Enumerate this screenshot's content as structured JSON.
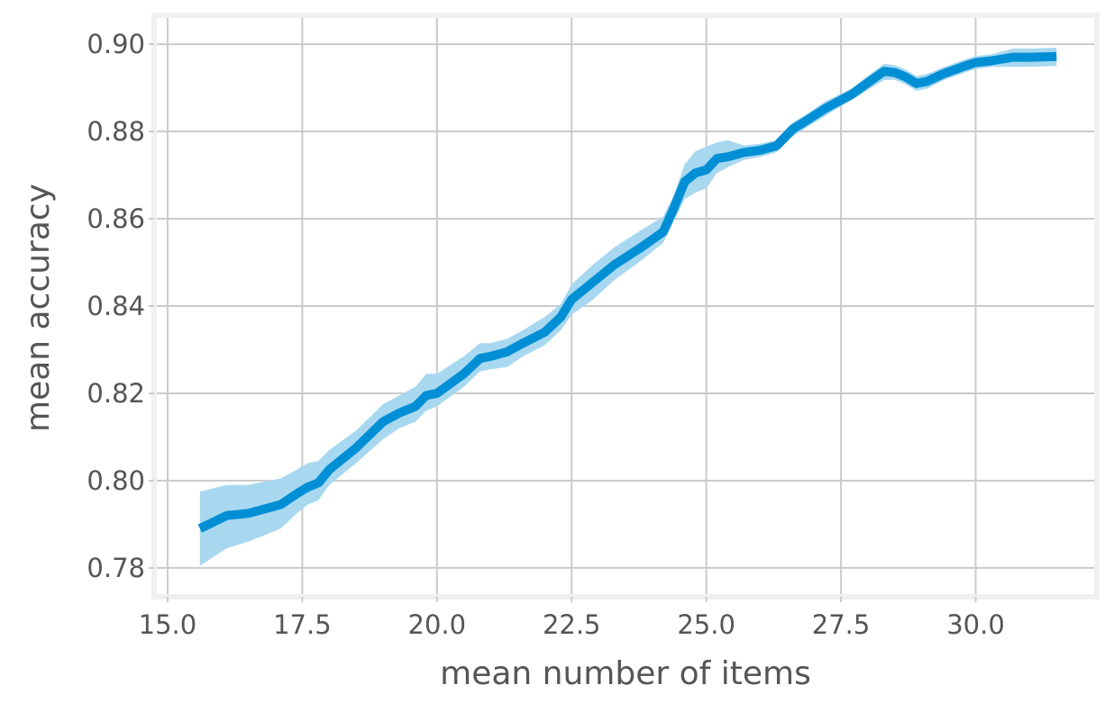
{
  "chart_data": {
    "type": "line",
    "title": "",
    "xlabel": "mean number of items",
    "ylabel": "mean accuracy",
    "xlim": [
      14.8,
      32.2
    ],
    "ylim": [
      0.774,
      0.906
    ],
    "x_ticks": [
      15.0,
      17.5,
      20.0,
      22.5,
      25.0,
      27.5,
      30.0
    ],
    "x_tick_labels": [
      "15.0",
      "17.5",
      "20.0",
      "22.5",
      "25.0",
      "27.5",
      "30.0"
    ],
    "y_ticks": [
      0.78,
      0.8,
      0.82,
      0.84,
      0.86,
      0.88,
      0.9
    ],
    "y_tick_labels": [
      "0.78",
      "0.80",
      "0.82",
      "0.84",
      "0.86",
      "0.88",
      "0.90"
    ],
    "grid": true,
    "legend": "none",
    "colors": {
      "line": "#008fd5",
      "band": "#a8d8f0",
      "grid": "#cbcbcb",
      "frame": "#f0f0f0",
      "text": "#555555"
    },
    "series": [
      {
        "x": [
          15.6,
          16.1,
          16.5,
          17.1,
          17.4,
          17.6,
          17.8,
          18.0,
          18.5,
          19.0,
          19.3,
          19.6,
          19.8,
          20.0,
          20.5,
          20.8,
          21.0,
          21.3,
          21.6,
          22.0,
          22.3,
          22.5,
          22.9,
          23.3,
          23.8,
          24.2,
          24.4,
          24.6,
          24.8,
          25.0,
          25.2,
          25.4,
          25.7,
          26.0,
          26.3,
          26.6,
          26.9,
          27.2,
          27.5,
          27.7,
          28.0,
          28.3,
          28.5,
          28.7,
          28.9,
          29.1,
          29.4,
          29.8,
          30.0,
          30.3,
          30.7,
          31.0,
          31.5
        ],
        "y": [
          0.789,
          0.792,
          0.7925,
          0.7945,
          0.797,
          0.7985,
          0.7995,
          0.8025,
          0.8075,
          0.8135,
          0.8155,
          0.817,
          0.8195,
          0.82,
          0.8245,
          0.828,
          0.8285,
          0.8295,
          0.8315,
          0.834,
          0.8375,
          0.8415,
          0.8455,
          0.8495,
          0.8535,
          0.857,
          0.8625,
          0.8685,
          0.8705,
          0.8712,
          0.8738,
          0.8742,
          0.8752,
          0.8757,
          0.8767,
          0.8805,
          0.8828,
          0.8852,
          0.8872,
          0.8885,
          0.8912,
          0.8938,
          0.8935,
          0.8925,
          0.891,
          0.8915,
          0.8932,
          0.895,
          0.8958,
          0.8962,
          0.897,
          0.897,
          0.8972
        ],
        "lower": [
          0.7805,
          0.7845,
          0.786,
          0.789,
          0.7925,
          0.7945,
          0.7955,
          0.799,
          0.804,
          0.8095,
          0.812,
          0.8135,
          0.816,
          0.817,
          0.8215,
          0.825,
          0.8255,
          0.826,
          0.8285,
          0.831,
          0.8345,
          0.838,
          0.8415,
          0.846,
          0.8505,
          0.8545,
          0.8595,
          0.8645,
          0.866,
          0.867,
          0.8705,
          0.8718,
          0.8735,
          0.8742,
          0.8752,
          0.8788,
          0.8812,
          0.8835,
          0.8858,
          0.8872,
          0.8895,
          0.8918,
          0.8918,
          0.8908,
          0.8893,
          0.8898,
          0.8917,
          0.8935,
          0.8943,
          0.8948,
          0.8948,
          0.8948,
          0.895
        ],
        "upper": [
          0.7975,
          0.799,
          0.799,
          0.8005,
          0.8025,
          0.804,
          0.8045,
          0.807,
          0.8115,
          0.8175,
          0.8195,
          0.8215,
          0.8245,
          0.8245,
          0.8285,
          0.8315,
          0.8315,
          0.8325,
          0.8345,
          0.8375,
          0.8405,
          0.845,
          0.8495,
          0.8535,
          0.8575,
          0.8605,
          0.8655,
          0.8725,
          0.8755,
          0.8765,
          0.8775,
          0.878,
          0.8768,
          0.8772,
          0.878,
          0.882,
          0.8843,
          0.8868,
          0.8887,
          0.8898,
          0.8928,
          0.8955,
          0.8952,
          0.8942,
          0.8927,
          0.8932,
          0.8947,
          0.8965,
          0.8973,
          0.8977,
          0.899,
          0.899,
          0.8992
        ]
      }
    ]
  }
}
